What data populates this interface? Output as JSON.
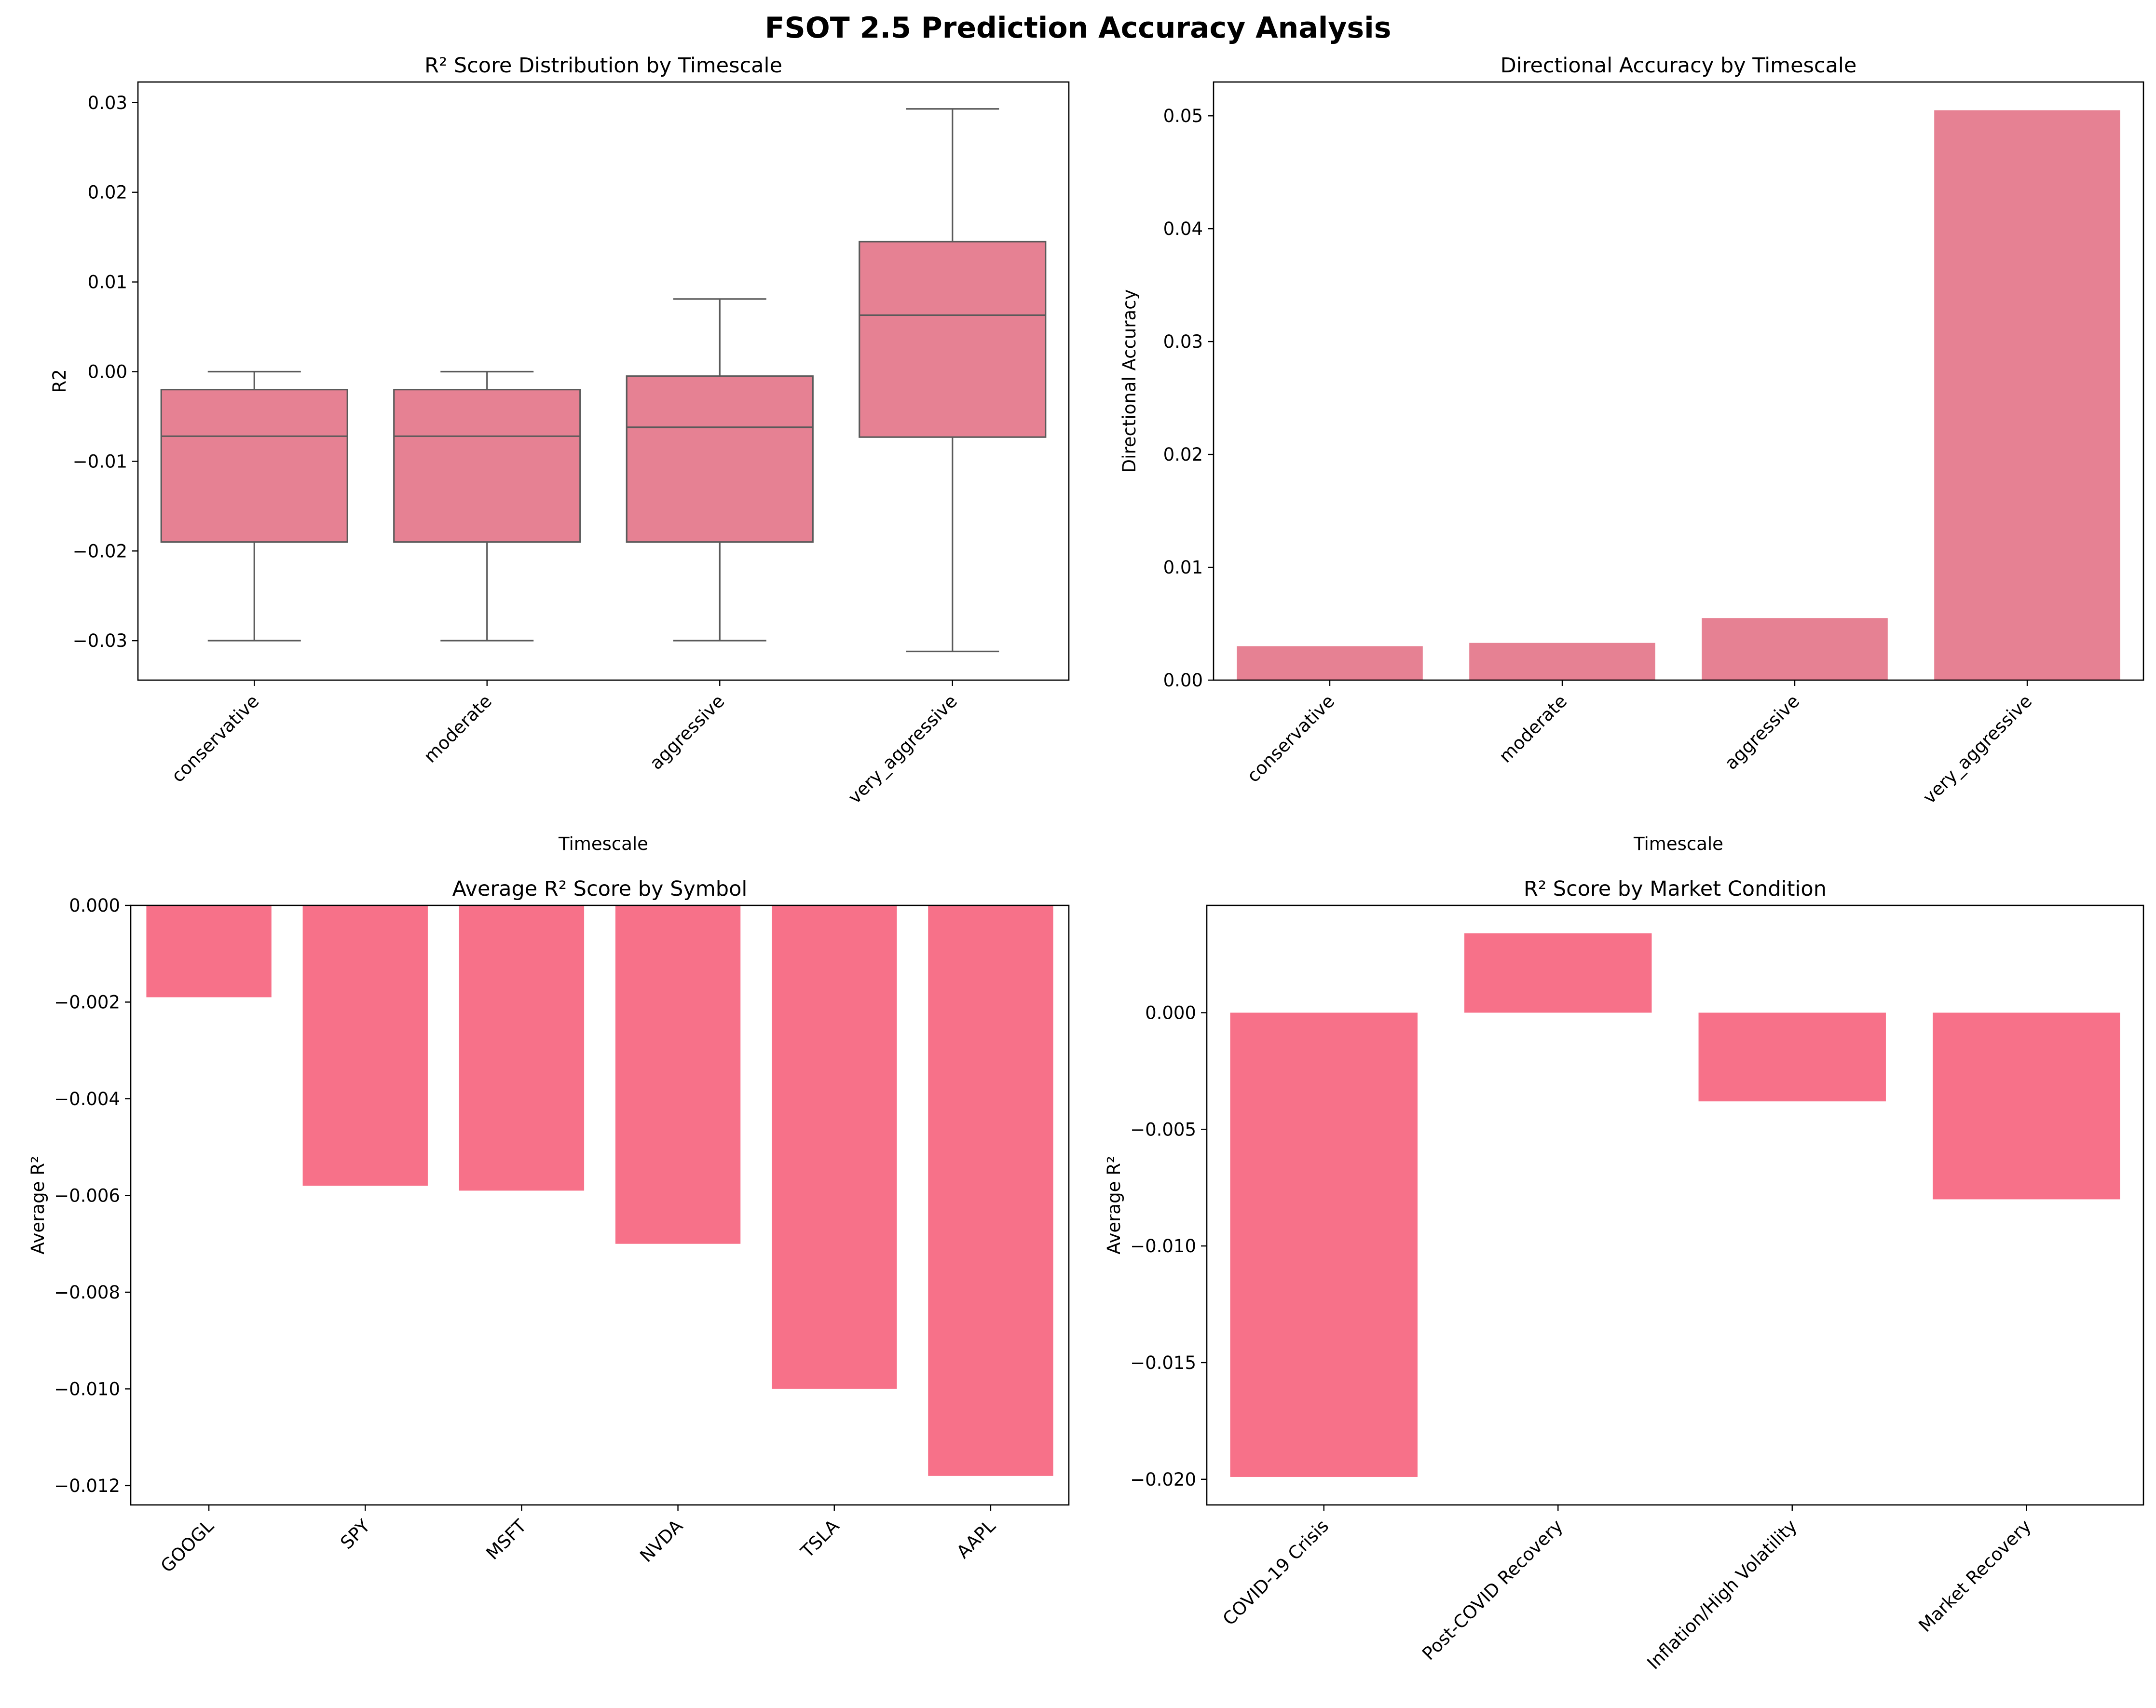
{
  "figure": {
    "title": "FSOT 2.5 Prediction Accuracy Analysis"
  },
  "colors": {
    "box_fill": "#e68193",
    "bar_accuracy": "#e68193",
    "bar_symbol": "#f77189",
    "bar_condition": "#f77189",
    "box_line": "#5a5a5a"
  },
  "chart_data": [
    {
      "type": "box",
      "title": "R² Score Distribution by Timescale",
      "xlabel": "Timescale",
      "ylabel": "R2",
      "categories": [
        "conservative",
        "moderate",
        "aggressive",
        "very_aggressive"
      ],
      "boxes": [
        {
          "whislo": -0.03,
          "q1": -0.019,
          "med": -0.0072,
          "q3": -0.002,
          "whishi": 0.0
        },
        {
          "whislo": -0.03,
          "q1": -0.019,
          "med": -0.0072,
          "q3": -0.002,
          "whishi": 0.0
        },
        {
          "whislo": -0.03,
          "q1": -0.019,
          "med": -0.0062,
          "q3": -0.0005,
          "whishi": 0.0081
        },
        {
          "whislo": -0.0312,
          "q1": -0.0073,
          "med": 0.0063,
          "q3": 0.0145,
          "whishi": 0.0293
        }
      ],
      "ylim": [
        -0.0344,
        0.0323
      ],
      "yticks": [
        -0.03,
        -0.02,
        -0.01,
        0.0,
        0.01,
        0.02,
        0.03
      ],
      "ytick_labels": [
        "−0.03",
        "−0.02",
        "−0.01",
        "0.00",
        "0.01",
        "0.02",
        "0.03"
      ],
      "grid": false
    },
    {
      "type": "bar",
      "title": "Directional Accuracy by Timescale",
      "xlabel": "Timescale",
      "ylabel": "Directional Accuracy",
      "categories": [
        "conservative",
        "moderate",
        "aggressive",
        "very_aggressive"
      ],
      "values": [
        0.003,
        0.0033,
        0.0055,
        0.0505
      ],
      "ylim": [
        0,
        0.053
      ],
      "yticks": [
        0,
        0.01,
        0.02,
        0.03,
        0.04,
        0.05
      ],
      "ytick_labels": [
        "0.00",
        "0.01",
        "0.02",
        "0.03",
        "0.04",
        "0.05"
      ],
      "grid": false
    },
    {
      "type": "bar",
      "title": "Average R² Score by Symbol",
      "xlabel": "",
      "ylabel": "Average R²",
      "categories": [
        "GOOGL",
        "SPY",
        "MSFT",
        "NVDA",
        "TSLA",
        "AAPL"
      ],
      "values": [
        -0.0019,
        -0.0058,
        -0.0059,
        -0.007,
        -0.01,
        -0.0118
      ],
      "ylim": [
        -0.0124,
        0
      ],
      "yticks": [
        0,
        -0.002,
        -0.004,
        -0.006,
        -0.008,
        -0.01,
        -0.012
      ],
      "ytick_labels": [
        "0.000",
        "−0.002",
        "−0.004",
        "−0.006",
        "−0.008",
        "−0.010",
        "−0.012"
      ],
      "grid": false
    },
    {
      "type": "bar",
      "title": "R² Score by Market Condition",
      "xlabel": "",
      "ylabel": "Average R²",
      "categories": [
        "COVID-19 Crisis",
        "Post-COVID Recovery",
        "Inflation/High Volatility",
        "Market Recovery"
      ],
      "values": [
        -0.0199,
        0.0034,
        -0.0038,
        -0.008
      ],
      "ylim": [
        -0.0211,
        0.0046
      ],
      "yticks": [
        0,
        -0.005,
        -0.01,
        -0.015,
        -0.02
      ],
      "ytick_labels": [
        "0.000",
        "−0.005",
        "−0.010",
        "−0.015",
        "−0.020"
      ],
      "grid": false
    }
  ]
}
